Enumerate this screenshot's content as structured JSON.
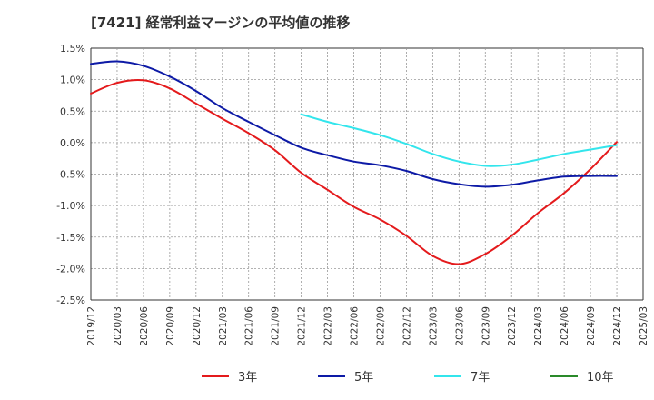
{
  "chart_data": {
    "type": "line",
    "title": "[7421]  経常利益マージンの平均値の推移",
    "xlabel": "",
    "ylabel": "",
    "ylim": [
      -2.5,
      1.5
    ],
    "y_ticks": [
      "1.5%",
      "1.0%",
      "0.5%",
      "0.0%",
      "-0.5%",
      "-1.0%",
      "-1.5%",
      "-2.0%",
      "-2.5%"
    ],
    "y_tick_values": [
      1.5,
      1.0,
      0.5,
      0.0,
      -0.5,
      -1.0,
      -1.5,
      -2.0,
      -2.5
    ],
    "x_ticks": [
      "2019/12",
      "2020/03",
      "2020/06",
      "2020/09",
      "2020/12",
      "2021/03",
      "2021/06",
      "2021/09",
      "2021/12",
      "2022/03",
      "2022/06",
      "2022/09",
      "2022/12",
      "2023/03",
      "2023/06",
      "2023/09",
      "2023/12",
      "2024/03",
      "2024/06",
      "2024/09",
      "2024/12",
      "2025/03"
    ],
    "grid": true,
    "legend_position": "bottom",
    "series": [
      {
        "name": "3年",
        "color": "#e41a1c",
        "points": [
          [
            "2019/12",
            0.78
          ],
          [
            "2020/03",
            0.95
          ],
          [
            "2020/06",
            0.99
          ],
          [
            "2020/09",
            0.86
          ],
          [
            "2020/12",
            0.62
          ],
          [
            "2021/03",
            0.38
          ],
          [
            "2021/06",
            0.15
          ],
          [
            "2021/09",
            -0.12
          ],
          [
            "2021/12",
            -0.48
          ],
          [
            "2022/03",
            -0.75
          ],
          [
            "2022/06",
            -1.02
          ],
          [
            "2022/09",
            -1.22
          ],
          [
            "2022/12",
            -1.48
          ],
          [
            "2023/03",
            -1.8
          ],
          [
            "2023/06",
            -1.93
          ],
          [
            "2023/09",
            -1.77
          ],
          [
            "2023/12",
            -1.48
          ],
          [
            "2024/03",
            -1.12
          ],
          [
            "2024/06",
            -0.8
          ],
          [
            "2024/09",
            -0.42
          ],
          [
            "2024/12",
            0.01
          ]
        ]
      },
      {
        "name": "5年",
        "color": "#0d1aa6",
        "points": [
          [
            "2019/12",
            1.25
          ],
          [
            "2020/03",
            1.29
          ],
          [
            "2020/06",
            1.22
          ],
          [
            "2020/09",
            1.05
          ],
          [
            "2020/12",
            0.82
          ],
          [
            "2021/03",
            0.55
          ],
          [
            "2021/06",
            0.33
          ],
          [
            "2021/09",
            0.12
          ],
          [
            "2021/12",
            -0.08
          ],
          [
            "2022/03",
            -0.2
          ],
          [
            "2022/06",
            -0.3
          ],
          [
            "2022/09",
            -0.36
          ],
          [
            "2022/12",
            -0.45
          ],
          [
            "2023/03",
            -0.58
          ],
          [
            "2023/06",
            -0.66
          ],
          [
            "2023/09",
            -0.7
          ],
          [
            "2023/12",
            -0.67
          ],
          [
            "2024/03",
            -0.6
          ],
          [
            "2024/06",
            -0.54
          ],
          [
            "2024/09",
            -0.53
          ],
          [
            "2024/12",
            -0.53
          ]
        ]
      },
      {
        "name": "7年",
        "color": "#33e5ec",
        "points": [
          [
            "2021/12",
            0.45
          ],
          [
            "2022/03",
            0.33
          ],
          [
            "2022/06",
            0.23
          ],
          [
            "2022/09",
            0.12
          ],
          [
            "2022/12",
            -0.02
          ],
          [
            "2023/03",
            -0.18
          ],
          [
            "2023/06",
            -0.3
          ],
          [
            "2023/09",
            -0.37
          ],
          [
            "2023/12",
            -0.35
          ],
          [
            "2024/03",
            -0.27
          ],
          [
            "2024/06",
            -0.18
          ],
          [
            "2024/09",
            -0.11
          ],
          [
            "2024/12",
            -0.04
          ]
        ]
      },
      {
        "name": "10年",
        "color": "#2a8a2a",
        "points": []
      }
    ]
  }
}
